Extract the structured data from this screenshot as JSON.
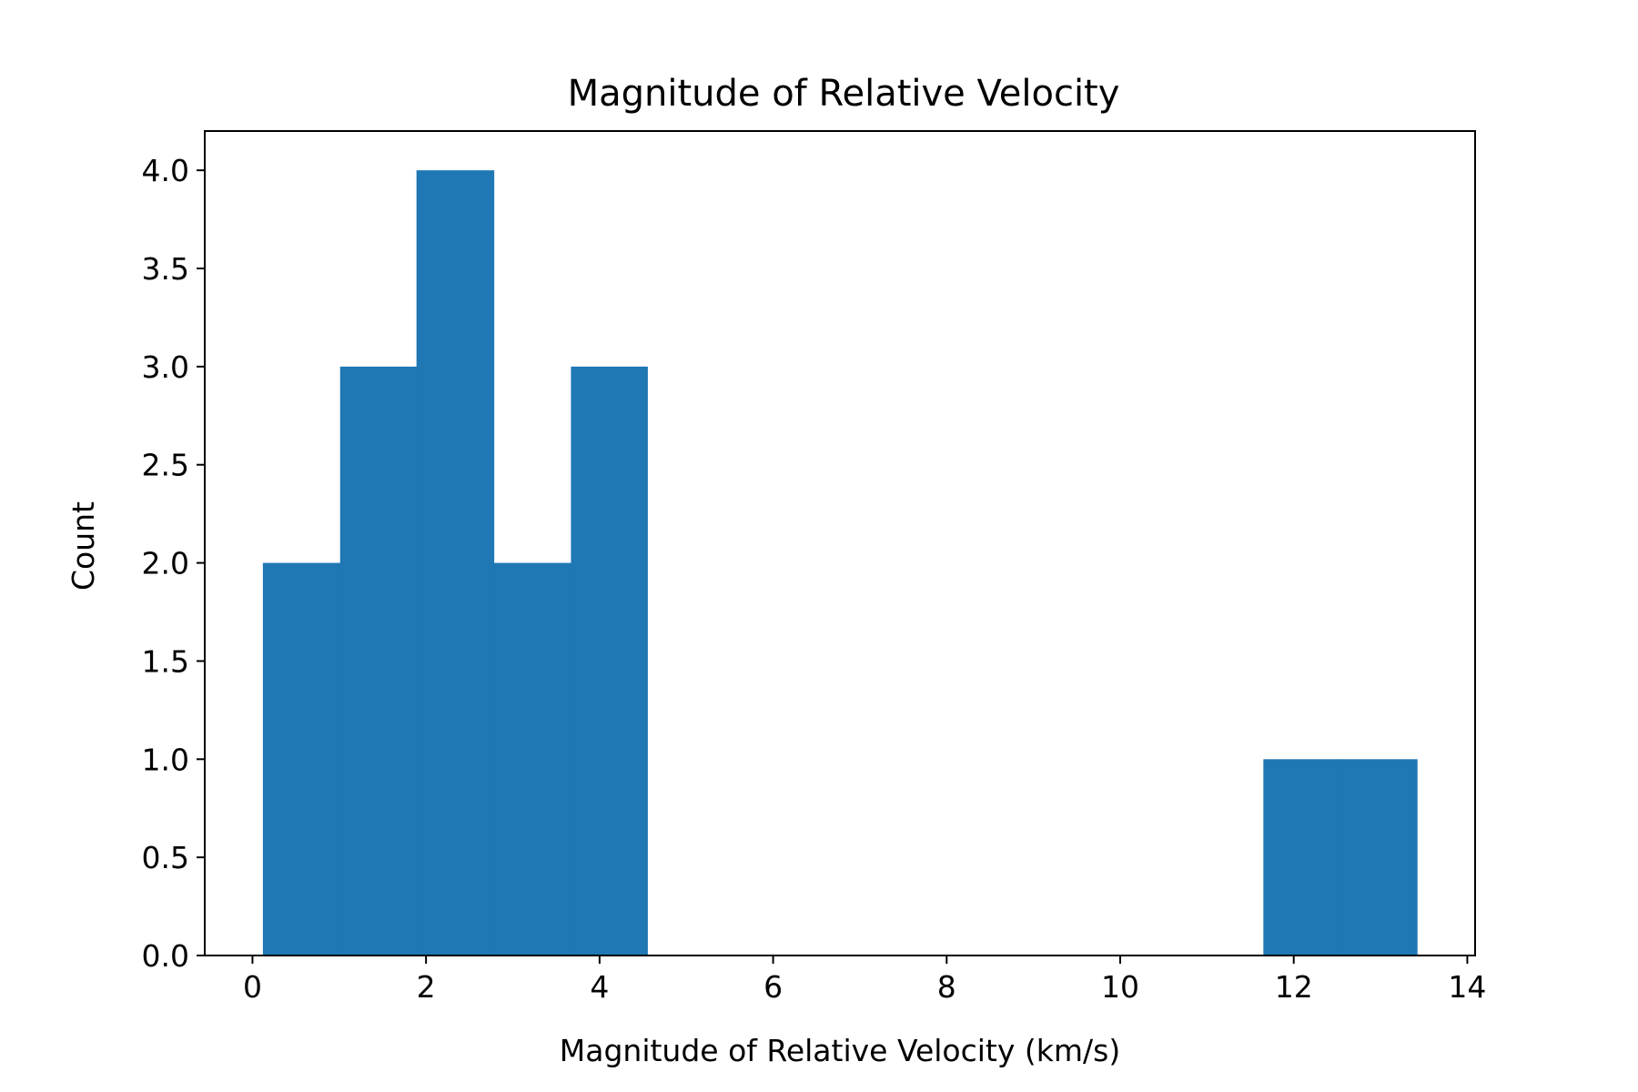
{
  "chart_data": {
    "type": "bar",
    "title": "Magnitude of Relative Velocity",
    "xlabel": "Magnitude of Relative Velocity (km/s)",
    "ylabel": "Count",
    "bins": [
      {
        "x0": 0.12,
        "x1": 1.01,
        "count": 2
      },
      {
        "x0": 1.01,
        "x1": 1.89,
        "count": 3
      },
      {
        "x0": 1.89,
        "x1": 2.78,
        "count": 4
      },
      {
        "x0": 2.78,
        "x1": 3.67,
        "count": 2
      },
      {
        "x0": 3.67,
        "x1": 4.55,
        "count": 3
      },
      {
        "x0": 4.55,
        "x1": 5.44,
        "count": 0
      },
      {
        "x0": 5.44,
        "x1": 6.33,
        "count": 0
      },
      {
        "x0": 6.33,
        "x1": 7.21,
        "count": 0
      },
      {
        "x0": 7.21,
        "x1": 8.1,
        "count": 0
      },
      {
        "x0": 8.1,
        "x1": 8.99,
        "count": 0
      },
      {
        "x0": 8.99,
        "x1": 9.87,
        "count": 0
      },
      {
        "x0": 9.87,
        "x1": 10.76,
        "count": 0
      },
      {
        "x0": 10.76,
        "x1": 11.65,
        "count": 0
      },
      {
        "x0": 11.65,
        "x1": 12.53,
        "count": 1
      },
      {
        "x0": 12.53,
        "x1": 13.42,
        "count": 1
      }
    ],
    "xlim": [
      -0.55,
      14.09
    ],
    "ylim": [
      0,
      4.2
    ],
    "xticks": [
      0,
      2,
      4,
      6,
      8,
      10,
      12,
      14
    ],
    "yticks": [
      0.0,
      0.5,
      1.0,
      1.5,
      2.0,
      2.5,
      3.0,
      3.5,
      4.0
    ],
    "color": "#1f77b4",
    "grid": false,
    "legend": "none"
  }
}
